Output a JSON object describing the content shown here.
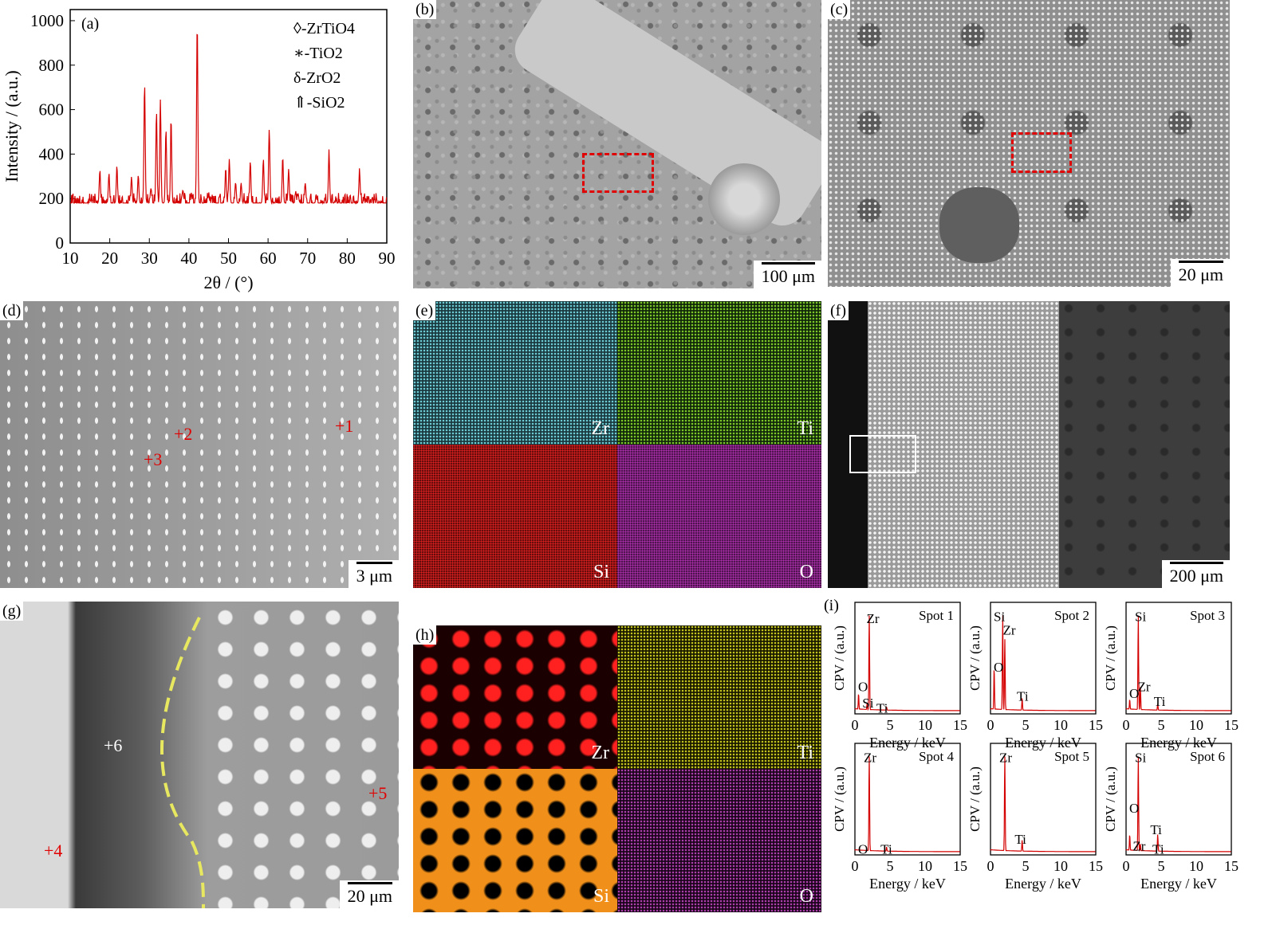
{
  "panels": {
    "a": {
      "label": "(a)"
    },
    "b": {
      "label": "(b)",
      "scale": "100 μm"
    },
    "c": {
      "label": "(c)",
      "scale": "20 μm"
    },
    "d": {
      "label": "(d)",
      "scale": "3 μm",
      "spots": [
        "+1",
        "+2",
        "+3"
      ]
    },
    "e": {
      "label": "(e)",
      "elements": [
        "Zr",
        "Ti",
        "Si",
        "O"
      ]
    },
    "f": {
      "label": "(f)",
      "scale": "200 μm"
    },
    "g": {
      "label": "(g)",
      "scale": "20 μm",
      "spots": [
        "+6",
        "+5",
        "+4"
      ]
    },
    "h": {
      "label": "(h)",
      "elements": [
        "Zr",
        "Ti",
        "Si",
        "O"
      ]
    },
    "i": {
      "label": "(i)"
    }
  },
  "chart_data": [
    {
      "type": "line",
      "panel": "a",
      "title": "",
      "xlabel": "2θ / (°)",
      "ylabel": "Intensity / (a.u.)",
      "xlim": [
        10,
        90
      ],
      "ylim": [
        0,
        1050
      ],
      "xticks": [
        "10",
        "20",
        "30",
        "40",
        "50",
        "60",
        "70",
        "80",
        "90"
      ],
      "yticks": [
        "0",
        "200",
        "400",
        "600",
        "800",
        "1000"
      ],
      "legend": [
        "◊-ZrTiO4",
        "∗-TiO2",
        "δ-ZrO2",
        "⇑-SiO2"
      ],
      "series": [
        {
          "color": "#d40000",
          "peaks": [
            {
              "x": 17.5,
              "y": 330
            },
            {
              "x": 19.8,
              "y": 310
            },
            {
              "x": 21.8,
              "y": 340
            },
            {
              "x": 25.5,
              "y": 300
            },
            {
              "x": 27.2,
              "y": 310
            },
            {
              "x": 28.8,
              "y": 720
            },
            {
              "x": 30.4,
              "y": 250
            },
            {
              "x": 31.8,
              "y": 590
            },
            {
              "x": 32.8,
              "y": 640
            },
            {
              "x": 34.2,
              "y": 520
            },
            {
              "x": 35.5,
              "y": 560
            },
            {
              "x": 38.5,
              "y": 230
            },
            {
              "x": 40.6,
              "y": 230
            },
            {
              "x": 42.1,
              "y": 990
            },
            {
              "x": 45.0,
              "y": 220
            },
            {
              "x": 49.3,
              "y": 330
            },
            {
              "x": 50.2,
              "y": 380
            },
            {
              "x": 51.8,
              "y": 280
            },
            {
              "x": 53.2,
              "y": 270
            },
            {
              "x": 55.5,
              "y": 370
            },
            {
              "x": 58.8,
              "y": 380
            },
            {
              "x": 60.3,
              "y": 520
            },
            {
              "x": 63.7,
              "y": 380
            },
            {
              "x": 65.2,
              "y": 330
            },
            {
              "x": 67.0,
              "y": 230
            },
            {
              "x": 69.4,
              "y": 270
            },
            {
              "x": 72.2,
              "y": 210
            },
            {
              "x": 75.4,
              "y": 420
            },
            {
              "x": 77.0,
              "y": 190
            },
            {
              "x": 80.5,
              "y": 180
            },
            {
              "x": 83.1,
              "y": 330
            },
            {
              "x": 85.5,
              "y": 160
            },
            {
              "x": 88.0,
              "y": 170
            }
          ],
          "baseline": 180
        }
      ]
    },
    {
      "type": "line",
      "panel": "i",
      "xlabel": "Energy / keV",
      "ylabel": "CPV / (a.u.)",
      "xlim": [
        0,
        15
      ],
      "xticks": [
        "0",
        "5",
        "10",
        "15"
      ],
      "series": [
        {
          "name": "Spot 1",
          "labels": [
            {
              "t": "Zr",
              "x": 1.2,
              "y": 0.95
            },
            {
              "t": "O",
              "x": -0.4,
              "y": 0.25
            },
            {
              "t": "Si",
              "x": 0.6,
              "y": 0.08
            },
            {
              "t": "Ti",
              "x": 2.6,
              "y": 0.03
            }
          ],
          "peaks": [
            {
              "x": 0.52,
              "y": 0.18
            },
            {
              "x": 1.74,
              "y": 0.08
            },
            {
              "x": 2.04,
              "y": 1.0
            },
            {
              "x": 4.51,
              "y": 0.04
            }
          ]
        },
        {
          "name": "Spot 2",
          "labels": [
            {
              "t": "Si",
              "x": -0.3,
              "y": 0.97
            },
            {
              "t": "Zr",
              "x": 1.3,
              "y": 0.83
            },
            {
              "t": "O",
              "x": -0.6,
              "y": 0.45
            },
            {
              "t": "Ti",
              "x": 3.3,
              "y": 0.15
            }
          ],
          "peaks": [
            {
              "x": 0.52,
              "y": 0.45
            },
            {
              "x": 1.74,
              "y": 1.0
            },
            {
              "x": 2.04,
              "y": 0.75
            },
            {
              "x": 4.51,
              "y": 0.13
            }
          ]
        },
        {
          "name": "Spot 3",
          "labels": [
            {
              "t": "Si",
              "x": 0.8,
              "y": 0.97
            },
            {
              "t": "O",
              "x": -0.6,
              "y": 0.18
            },
            {
              "t": "Zr",
              "x": 1.2,
              "y": 0.25
            },
            {
              "t": "Ti",
              "x": 3.5,
              "y": 0.1
            }
          ],
          "peaks": [
            {
              "x": 0.52,
              "y": 0.12
            },
            {
              "x": 1.74,
              "y": 1.0
            },
            {
              "x": 2.04,
              "y": 0.25
            },
            {
              "x": 4.51,
              "y": 0.07
            }
          ]
        },
        {
          "name": "Spot 4",
          "labels": [
            {
              "t": "Zr",
              "x": 0.8,
              "y": 0.97
            },
            {
              "t": "O",
              "x": -0.6,
              "y": 0.03
            },
            {
              "t": "Ti",
              "x": 3.2,
              "y": 0.03
            }
          ],
          "peaks": [
            {
              "x": 0.52,
              "y": 0.02
            },
            {
              "x": 2.04,
              "y": 1.0
            },
            {
              "x": 4.51,
              "y": 0.05
            }
          ]
        },
        {
          "name": "Spot 5",
          "labels": [
            {
              "t": "Zr",
              "x": 0.8,
              "y": 0.97
            },
            {
              "t": "Ti",
              "x": 3.0,
              "y": 0.13
            }
          ],
          "peaks": [
            {
              "x": 2.04,
              "y": 1.0
            },
            {
              "x": 4.51,
              "y": 0.12
            }
          ]
        },
        {
          "name": "Spot 6",
          "labels": [
            {
              "t": "Si",
              "x": 0.8,
              "y": 0.97
            },
            {
              "t": "O",
              "x": -0.6,
              "y": 0.45
            },
            {
              "t": "Ti",
              "x": 3.0,
              "y": 0.23
            },
            {
              "t": "Zr",
              "x": 0.5,
              "y": 0.06
            },
            {
              "t": "Ti",
              "x": 3.3,
              "y": 0.03
            }
          ],
          "peaks": [
            {
              "x": 0.52,
              "y": 0.18
            },
            {
              "x": 1.74,
              "y": 1.0
            },
            {
              "x": 2.04,
              "y": 0.08
            },
            {
              "x": 4.51,
              "y": 0.18
            }
          ]
        }
      ]
    }
  ]
}
